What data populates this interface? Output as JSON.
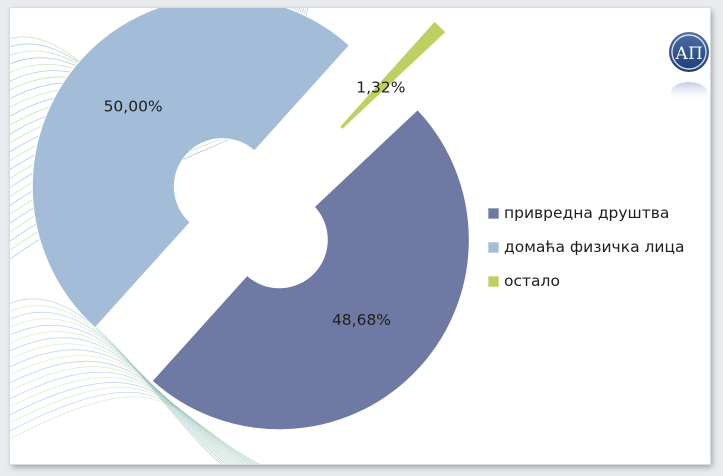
{
  "chart_data": {
    "type": "pie",
    "title": "",
    "categories": [
      "привредна друштва",
      "домаћа физичка лица",
      "остало"
    ],
    "values": [
      48.68,
      50.0,
      1.32
    ],
    "value_labels": [
      "48,68%",
      "50,00%",
      "1,32%"
    ],
    "colors": [
      "#6f7aa4",
      "#a3bdd8",
      "#bfcf62"
    ],
    "legend_position": "right",
    "exploded": true,
    "doughnut": true
  },
  "logo": {
    "text": "АП"
  }
}
